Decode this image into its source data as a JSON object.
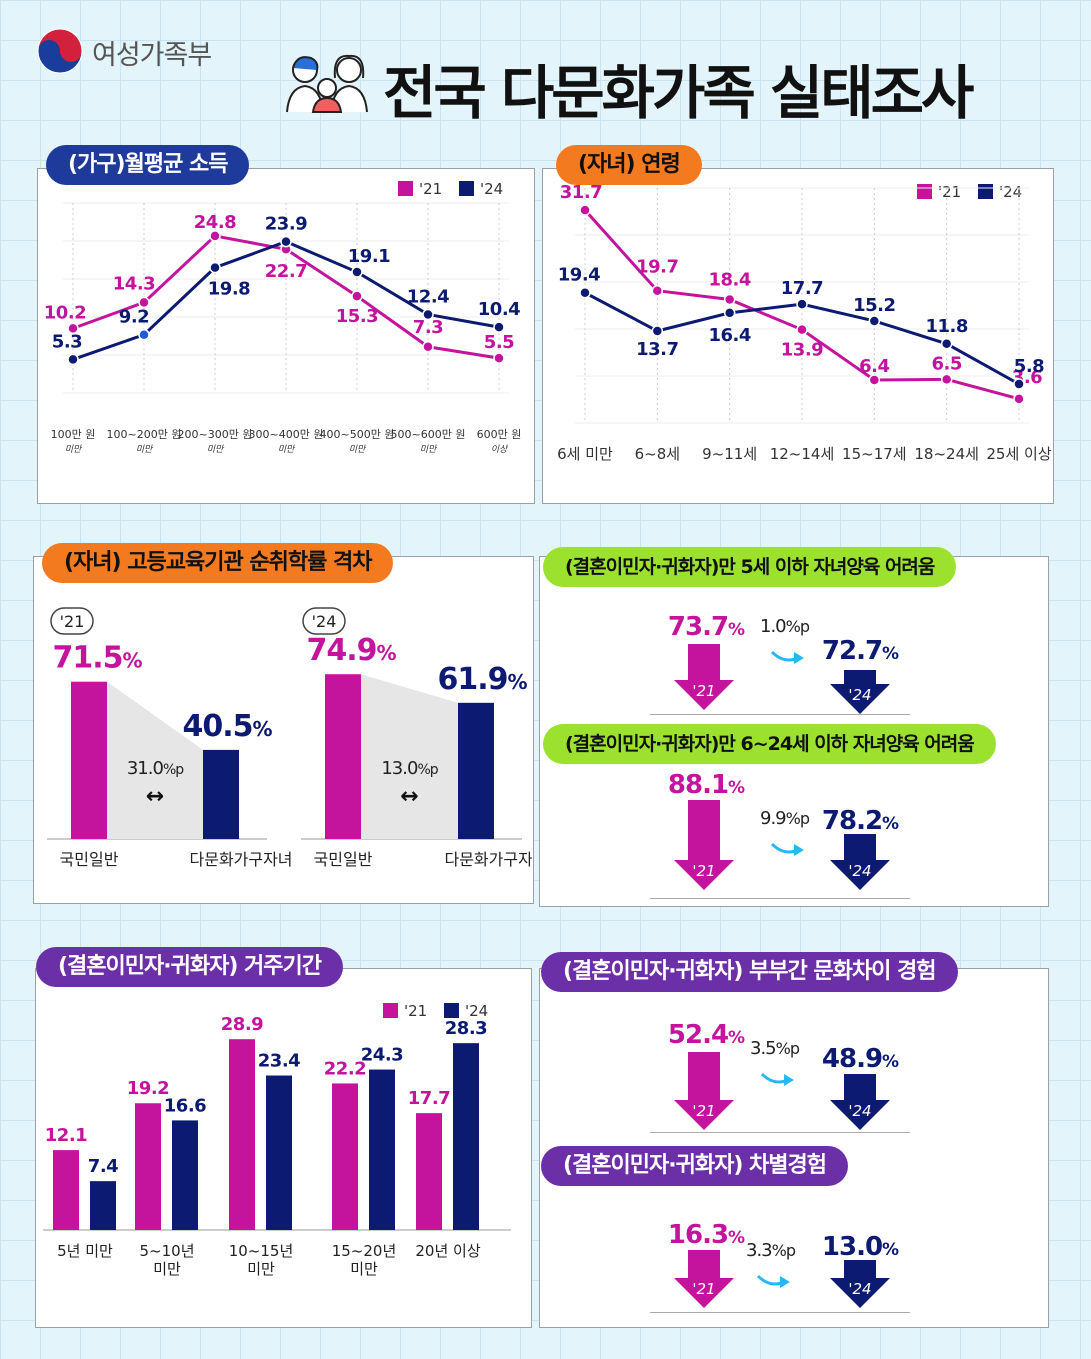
{
  "header": {
    "ministry": "여성가족부",
    "title": "전국 다문화가족 실태조사"
  },
  "colors": {
    "y21": "#c4139c",
    "y24": "#0c1a72"
  },
  "legend": {
    "y21": "'21",
    "y24": "'24"
  },
  "sections": {
    "income": "(가구)월평균 소득",
    "age": "(자녀) 연령",
    "enroll": "(자녀) 고등교육기관 순취학률 격차",
    "child5": "(결혼이민자·귀화자)만 5세 이하 자녀양육 어려움",
    "child624": "(결혼이민자·귀화자)만 6~24세 이하 자녀양육 어려움",
    "residence": "(결혼이민자·귀화자) 거주기간",
    "culture": "(결혼이민자·귀화자) 부부간 문화차이 경험",
    "discrim": "(결혼이민자·귀화자) 차별경험"
  },
  "chart_data": [
    {
      "id": "income",
      "type": "line",
      "title": "(가구)월평균 소득",
      "categories": [
        [
          "100만 원",
          "미만"
        ],
        [
          "100~200만 원",
          "미만"
        ],
        [
          "200~300만 원",
          "미만"
        ],
        [
          "300~400만 원",
          "미만"
        ],
        [
          "400~500만 원",
          "미만"
        ],
        [
          "500~600만 원",
          "미만"
        ],
        [
          "600만 원",
          "이상"
        ]
      ],
      "series": [
        {
          "name": "'21",
          "values": [
            10.2,
            14.3,
            24.8,
            22.7,
            15.3,
            7.3,
            5.5
          ]
        },
        {
          "name": "'24",
          "values": [
            5.3,
            9.2,
            19.8,
            23.9,
            19.1,
            12.4,
            10.4
          ]
        }
      ],
      "ylim": [
        0,
        30
      ]
    },
    {
      "id": "age",
      "type": "line",
      "title": "(자녀) 연령",
      "categories": [
        "6세 미만",
        "6~8세",
        "9~11세",
        "12~14세",
        "15~17세",
        "18~24세",
        "25세 이상"
      ],
      "series": [
        {
          "name": "'21",
          "values": [
            31.7,
            19.7,
            18.4,
            13.9,
            6.4,
            6.5,
            3.6
          ]
        },
        {
          "name": "'24",
          "values": [
            19.4,
            13.7,
            16.4,
            17.7,
            15.2,
            11.8,
            5.8
          ]
        }
      ],
      "ylim": [
        0,
        35
      ]
    },
    {
      "id": "enroll",
      "type": "bar",
      "title": "(자녀) 고등교육기관 순취학률 격차",
      "groups": [
        {
          "year": "'21",
          "categories": [
            "국민일반",
            "다문화가구자녀"
          ],
          "values": [
            71.5,
            40.5
          ],
          "gap": "31.0"
        },
        {
          "year": "'24",
          "categories": [
            "국민일반",
            "다문화가구자녀"
          ],
          "values": [
            74.9,
            61.9
          ],
          "gap": "13.0"
        }
      ],
      "unit": "%",
      "gap_unit": "%p",
      "ylim": [
        0,
        100
      ]
    },
    {
      "id": "residence",
      "type": "bar",
      "title": "(결혼이민자·귀화자) 거주기간",
      "categories": [
        [
          "5년 미만"
        ],
        [
          "5~10년",
          "미만"
        ],
        [
          "10~15년",
          "미만"
        ],
        [
          "15~20년",
          "미만"
        ],
        [
          "20년 이상"
        ]
      ],
      "series": [
        {
          "name": "'21",
          "values": [
            12.1,
            19.2,
            28.9,
            22.2,
            17.7
          ]
        },
        {
          "name": "'24",
          "values": [
            7.4,
            16.6,
            23.4,
            24.3,
            28.3
          ]
        }
      ],
      "ylim": [
        0,
        35
      ]
    }
  ],
  "comparisons": {
    "child5": {
      "v21": "73.7",
      "v24": "72.7",
      "diff": "1.0",
      "unit": "%",
      "diff_unit": "%p"
    },
    "child624": {
      "v21": "88.1",
      "v24": "78.2",
      "diff": "9.9",
      "unit": "%",
      "diff_unit": "%p"
    },
    "culture": {
      "v21": "52.4",
      "v24": "48.9",
      "diff": "3.5",
      "unit": "%",
      "diff_unit": "%p"
    },
    "discrim": {
      "v21": "16.3",
      "v24": "13.0",
      "diff": "3.3",
      "unit": "%",
      "diff_unit": "%p"
    }
  }
}
